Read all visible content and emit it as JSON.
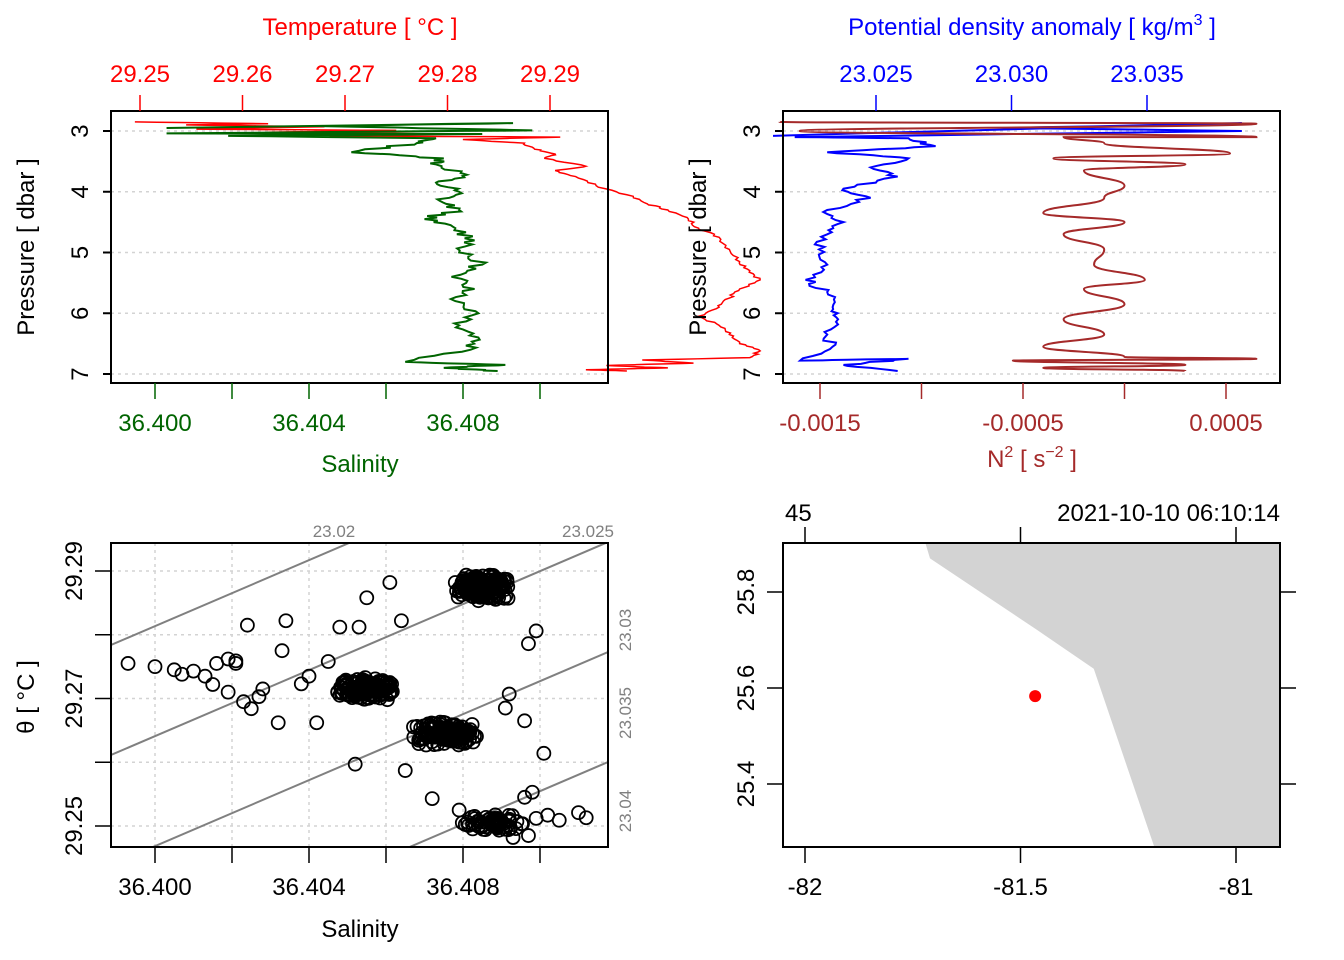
{
  "figure": {
    "description": "Four-panel oceanographic CTD summary (oce-style plot)"
  },
  "colors": {
    "temperature": "#ff0000",
    "salinity": "#006400",
    "density": "#0000ff",
    "n2": "#a52a2a",
    "grid": "#d3d3d3",
    "isopycnal": "#808080",
    "land": "#d3d3d3",
    "station": "#ff0000",
    "frame": "#000000"
  },
  "chart_data": [
    {
      "id": "ts-profile",
      "type": "line",
      "title": "",
      "ylabel": "Pressure [ dbar ]",
      "ylim": [
        7,
        3
      ],
      "yticks": [
        "3",
        "4",
        "5",
        "6",
        "7"
      ],
      "grid": true,
      "top_axis": {
        "label": "Temperature [ °C ]",
        "ticks": [
          "29.25",
          "29.26",
          "29.27",
          "29.28",
          "29.29"
        ]
      },
      "bottom_axis": {
        "label": "Salinity",
        "ticks": [
          "36.400",
          "",
          "36.404",
          "",
          "36.408",
          ""
        ],
        "tick_values": [
          36.4,
          36.402,
          36.404,
          36.406,
          36.408,
          36.41
        ]
      },
      "series": [
        {
          "name": "Temperature",
          "axis": "top",
          "points": [
            [
              29.2495,
              2.85
            ],
            [
              29.2625,
              2.88
            ],
            [
              29.2545,
              2.9
            ],
            [
              29.268,
              2.93
            ],
            [
              29.2555,
              2.97
            ],
            [
              29.275,
              2.99
            ],
            [
              29.2625,
              3.02
            ],
            [
              29.2805,
              3.05
            ],
            [
              29.2685,
              3.08
            ],
            [
              29.291,
              3.1
            ],
            [
              29.2815,
              3.14
            ],
            [
              29.2875,
              3.2
            ],
            [
              29.2885,
              3.3
            ],
            [
              29.2905,
              3.38
            ],
            [
              29.2895,
              3.45
            ],
            [
              29.2935,
              3.58
            ],
            [
              29.2905,
              3.65
            ],
            [
              29.2925,
              3.75
            ],
            [
              29.2945,
              3.9
            ],
            [
              29.2975,
              4.05
            ],
            [
              29.2995,
              4.2
            ],
            [
              29.3015,
              4.3
            ],
            [
              29.3035,
              4.45
            ],
            [
              29.3045,
              4.6
            ],
            [
              29.3065,
              4.75
            ],
            [
              29.3075,
              4.95
            ],
            [
              29.3085,
              5.15
            ],
            [
              29.3095,
              5.3
            ],
            [
              29.3105,
              5.45
            ],
            [
              29.3085,
              5.6
            ],
            [
              29.3075,
              5.75
            ],
            [
              29.3065,
              5.9
            ],
            [
              29.3045,
              6.05
            ],
            [
              29.3065,
              6.2
            ],
            [
              29.3075,
              6.35
            ],
            [
              29.3085,
              6.5
            ],
            [
              29.3105,
              6.62
            ],
            [
              29.3095,
              6.73
            ],
            [
              29.299,
              6.77
            ],
            [
              29.304,
              6.82
            ],
            [
              29.2955,
              6.86
            ],
            [
              29.3015,
              6.9
            ],
            [
              29.2935,
              6.93
            ],
            [
              29.2975,
              6.95
            ]
          ]
        },
        {
          "name": "Salinity",
          "axis": "bottom",
          "points": [
            [
              36.4003,
              2.95
            ],
            [
              36.4093,
              2.87
            ],
            [
              36.4043,
              2.92
            ],
            [
              36.4098,
              2.99
            ],
            [
              36.4003,
              3.04
            ],
            [
              36.4085,
              3.05
            ],
            [
              36.4019,
              3.08
            ],
            [
              36.4073,
              3.12
            ],
            [
              36.4068,
              3.2
            ],
            [
              36.4051,
              3.35
            ],
            [
              36.4075,
              3.45
            ],
            [
              36.4073,
              3.55
            ],
            [
              36.4081,
              3.72
            ],
            [
              36.4073,
              3.85
            ],
            [
              36.4079,
              4.0
            ],
            [
              36.4074,
              4.15
            ],
            [
              36.4079,
              4.3
            ],
            [
              36.407,
              4.45
            ],
            [
              36.4078,
              4.6
            ],
            [
              36.4083,
              4.8
            ],
            [
              36.4079,
              5.0
            ],
            [
              36.4085,
              5.2
            ],
            [
              36.4077,
              5.4
            ],
            [
              36.4083,
              5.6
            ],
            [
              36.4078,
              5.8
            ],
            [
              36.4084,
              6.0
            ],
            [
              36.4079,
              6.2
            ],
            [
              36.4084,
              6.4
            ],
            [
              36.4082,
              6.6
            ],
            [
              36.4065,
              6.8
            ],
            [
              36.4091,
              6.85
            ],
            [
              36.4075,
              6.9
            ],
            [
              36.4089,
              6.95
            ]
          ]
        }
      ]
    },
    {
      "id": "density-n2-profile",
      "type": "line",
      "ylabel": "Pressure [ dbar ]",
      "ylim": [
        7,
        3
      ],
      "yticks": [
        "3",
        "4",
        "5",
        "6",
        "7"
      ],
      "grid": true,
      "top_axis": {
        "label": "Potential density anomaly [ kg/m³ ]",
        "ticks": [
          "23.025",
          "23.030",
          "23.035"
        ]
      },
      "bottom_axis": {
        "label": "N² [ s⁻² ]",
        "ticks": [
          "-0.0015",
          "",
          "-0.0005",
          "",
          "0.0005"
        ],
        "tick_values": [
          -0.0015,
          -0.001,
          -0.0005,
          0.0,
          0.0005
        ]
      },
      "series": [
        {
          "name": "Potential density anomaly",
          "axis": "top",
          "points": [
            [
              23.0212,
              3.08
            ],
            [
              23.0385,
              2.87
            ],
            [
              23.03,
              2.95
            ],
            [
              23.0385,
              3.0
            ],
            [
              23.022,
              3.1
            ],
            [
              23.0262,
              3.12
            ],
            [
              23.0272,
              3.25
            ],
            [
              23.0232,
              3.35
            ],
            [
              23.0262,
              3.45
            ],
            [
              23.0248,
              3.6
            ],
            [
              23.0258,
              3.75
            ],
            [
              23.0238,
              3.95
            ],
            [
              23.0248,
              4.1
            ],
            [
              23.0232,
              4.3
            ],
            [
              23.0238,
              4.5
            ],
            [
              23.0232,
              4.7
            ],
            [
              23.0229,
              4.95
            ],
            [
              23.0232,
              5.2
            ],
            [
              23.0224,
              5.45
            ],
            [
              23.0232,
              5.65
            ],
            [
              23.0234,
              5.9
            ],
            [
              23.0236,
              6.1
            ],
            [
              23.0232,
              6.35
            ],
            [
              23.0234,
              6.55
            ],
            [
              23.0222,
              6.78
            ],
            [
              23.0262,
              6.75
            ],
            [
              23.0238,
              6.85
            ],
            [
              23.0258,
              6.95
            ]
          ]
        },
        {
          "name": "N²",
          "axis": "bottom",
          "points": [
            [
              -0.0017,
              2.85
            ],
            [
              0.00065,
              2.88
            ],
            [
              -0.0016,
              3.0
            ],
            [
              0.00065,
              3.1
            ],
            [
              -0.0003,
              3.1
            ],
            [
              -0.0001,
              3.2
            ],
            [
              0.00052,
              3.37
            ],
            [
              -0.00035,
              3.45
            ],
            [
              0.0003,
              3.55
            ],
            [
              -0.0002,
              3.65
            ],
            [
              0.0,
              3.9
            ],
            [
              -0.0001,
              4.1
            ],
            [
              -0.0004,
              4.35
            ],
            [
              0.0,
              4.5
            ],
            [
              -0.0003,
              4.7
            ],
            [
              -0.0001,
              4.95
            ],
            [
              -0.00015,
              5.2
            ],
            [
              0.0001,
              5.45
            ],
            [
              -0.0002,
              5.6
            ],
            [
              0.0,
              5.85
            ],
            [
              -0.0003,
              6.1
            ],
            [
              -0.0001,
              6.35
            ],
            [
              -0.0004,
              6.55
            ],
            [
              0.0,
              6.72
            ],
            [
              0.00065,
              6.75
            ],
            [
              -0.00055,
              6.78
            ],
            [
              0.0003,
              6.85
            ],
            [
              -0.0004,
              6.9
            ],
            [
              0.0003,
              6.95
            ]
          ]
        }
      ]
    },
    {
      "id": "ts-diagram",
      "type": "scatter",
      "xlabel": "Salinity",
      "ylabel": "θ [ °C ]",
      "xticks": [
        "36.400",
        "",
        "36.404",
        "",
        "36.408",
        ""
      ],
      "xtick_values": [
        36.4,
        36.402,
        36.404,
        36.406,
        36.408,
        36.41
      ],
      "yticks": [
        "29.25",
        "",
        "29.27",
        "",
        "29.29"
      ],
      "ytick_values": [
        29.25,
        29.26,
        29.27,
        29.28,
        29.29
      ],
      "xlim": [
        36.3993,
        36.4118
      ],
      "ylim": [
        29.2467,
        29.2945
      ],
      "grid": true,
      "marker": "open-circle",
      "isopycnals": [
        {
          "label": "23.02",
          "position": "top"
        },
        {
          "label": "23.025",
          "position": "top"
        },
        {
          "label": "23.03",
          "position": "right"
        },
        {
          "label": "23.035",
          "position": "right"
        },
        {
          "label": "23.04",
          "position": "right"
        }
      ],
      "clusters": [
        {
          "center": [
            36.4085,
            29.2875
          ],
          "spread": [
            0.0007,
            0.0022
          ],
          "count": 220
        },
        {
          "center": [
            36.4055,
            29.2715
          ],
          "spread": [
            0.0008,
            0.0018
          ],
          "count": 180
        },
        {
          "center": [
            36.4075,
            29.2645
          ],
          "spread": [
            0.0009,
            0.002
          ],
          "count": 150
        },
        {
          "center": [
            36.4088,
            29.2505
          ],
          "spread": [
            0.0009,
            0.0015
          ],
          "count": 60
        }
      ],
      "points": [
        [
          36.3993,
          29.2755
        ],
        [
          36.4,
          29.275
        ],
        [
          36.4005,
          29.2745
        ],
        [
          36.4007,
          29.2738
        ],
        [
          36.401,
          29.2743
        ],
        [
          36.4013,
          29.2735
        ],
        [
          36.4016,
          29.2755
        ],
        [
          36.4019,
          29.2762
        ],
        [
          36.4021,
          29.2759
        ],
        [
          36.4021,
          29.2755
        ],
        [
          36.4015,
          29.2722
        ],
        [
          36.4019,
          29.271
        ],
        [
          36.4023,
          29.2695
        ],
        [
          36.4025,
          29.2684
        ],
        [
          36.4027,
          29.2703
        ],
        [
          36.4038,
          29.2723
        ],
        [
          36.404,
          29.2735
        ],
        [
          36.4033,
          29.2775
        ],
        [
          36.4045,
          29.2758
        ],
        [
          36.4055,
          29.2858
        ],
        [
          36.4048,
          29.2812
        ],
        [
          36.4053,
          29.2812
        ],
        [
          36.4064,
          29.2822
        ],
        [
          36.4078,
          29.2882
        ],
        [
          36.4061,
          29.2882
        ],
        [
          36.4034,
          29.2822
        ],
        [
          36.4024,
          29.2815
        ],
        [
          36.4028,
          29.2715
        ],
        [
          36.4032,
          29.2662
        ],
        [
          36.4042,
          29.2662
        ],
        [
          36.4048,
          29.2705
        ],
        [
          36.4065,
          29.2587
        ],
        [
          36.4072,
          29.2543
        ],
        [
          36.4079,
          29.2525
        ],
        [
          36.4083,
          29.2515
        ],
        [
          36.4089,
          29.2512
        ],
        [
          36.4094,
          29.2507
        ],
        [
          36.4096,
          29.2545
        ],
        [
          36.4102,
          29.2517
        ],
        [
          36.4105,
          29.2509
        ],
        [
          36.411,
          29.2521
        ],
        [
          36.4112,
          29.2513
        ],
        [
          36.4093,
          29.2482
        ],
        [
          36.4097,
          29.2485
        ],
        [
          36.4099,
          29.2512
        ],
        [
          36.4083,
          29.2641
        ],
        [
          36.4091,
          29.2685
        ],
        [
          36.4096,
          29.2665
        ],
        [
          36.4092,
          29.2707
        ],
        [
          36.4097,
          29.2786
        ],
        [
          36.4099,
          29.2806
        ],
        [
          36.4101,
          29.2614
        ],
        [
          36.4052,
          29.2597
        ],
        [
          36.4098,
          29.2553
        ]
      ]
    },
    {
      "id": "station-map",
      "type": "scatter",
      "subtype": "map",
      "xticks": [
        "-82",
        "-81.5",
        "-81"
      ],
      "xtick_values": [
        -82,
        -81.5,
        -81
      ],
      "yticks": [
        "25.4",
        "25.6",
        "25.8"
      ],
      "ytick_values": [
        25.4,
        25.6,
        25.8
      ],
      "xlim": [
        -82.05,
        -80.9
      ],
      "ylim": [
        25.27,
        25.9
      ],
      "top_labels": [
        "45",
        "2021-10-10 06:10:14"
      ],
      "top_tick_values": [
        -82,
        -81.5,
        -81
      ],
      "station": {
        "lon": -81.466,
        "lat": 25.583
      },
      "land_polygon": [
        [
          -81.72,
          25.9
        ],
        [
          -81.71,
          25.87
        ],
        [
          -81.46,
          25.72
        ],
        [
          -81.33,
          25.64
        ],
        [
          -81.19,
          25.27
        ],
        [
          -80.9,
          25.27
        ],
        [
          -80.9,
          25.9
        ]
      ]
    }
  ]
}
